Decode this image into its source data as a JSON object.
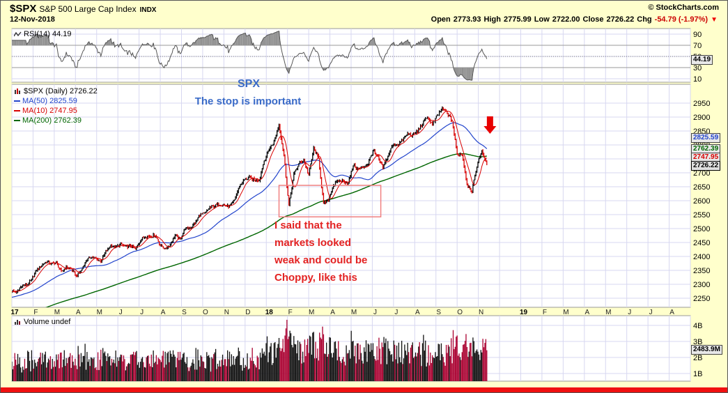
{
  "header": {
    "symbol": "$SPX",
    "index_name": "S&P 500 Large Cap Index",
    "exchange": "INDX",
    "credit": "© StockCharts.com",
    "date": "12-Nov-2018",
    "open_label": "Open",
    "open_value": "2773.93",
    "high_label": "High",
    "high_value": "2775.99",
    "low_label": "Low",
    "low_value": "2722.00",
    "close_label": "Close",
    "close_value": "2726.22",
    "chg_label": "Chg",
    "chg_value": "-54.79 (-1.97%)",
    "chg_arrow": "▼"
  },
  "rsi_panel": {
    "legend": "RSI(14) 44.19",
    "value_label": "44.19"
  },
  "main_panel": {
    "legend_main": "$SPX (Daily) 2726.22",
    "legend_ma50": "MA(50) 2825.59",
    "legend_ma10": "MA(10) 2747.95",
    "legend_ma200": "MA(200) 2762.39",
    "box_ma50": "2825.59",
    "box_ma200": "2762.39",
    "box_ma10": "2747.95",
    "box_close": "2726.22"
  },
  "volume_panel": {
    "legend": "Volume undef",
    "box_value": "2483.9M"
  },
  "x_axis": {
    "labels": [
      {
        "t": "17",
        "m": 0,
        "y": true
      },
      {
        "t": "F",
        "m": 1
      },
      {
        "t": "M",
        "m": 2
      },
      {
        "t": "A",
        "m": 3
      },
      {
        "t": "M",
        "m": 4
      },
      {
        "t": "J",
        "m": 5
      },
      {
        "t": "J",
        "m": 6
      },
      {
        "t": "A",
        "m": 7
      },
      {
        "t": "S",
        "m": 8
      },
      {
        "t": "O",
        "m": 9
      },
      {
        "t": "N",
        "m": 10
      },
      {
        "t": "D",
        "m": 11
      },
      {
        "t": "18",
        "m": 12,
        "y": true
      },
      {
        "t": "F",
        "m": 13
      },
      {
        "t": "M",
        "m": 14
      },
      {
        "t": "A",
        "m": 15
      },
      {
        "t": "M",
        "m": 16
      },
      {
        "t": "J",
        "m": 17
      },
      {
        "t": "J",
        "m": 18
      },
      {
        "t": "A",
        "m": 19
      },
      {
        "t": "S",
        "m": 20
      },
      {
        "t": "O",
        "m": 21
      },
      {
        "t": "N",
        "m": 22
      },
      {
        "t": "19",
        "m": 24,
        "y": true
      },
      {
        "t": "F",
        "m": 25
      },
      {
        "t": "M",
        "m": 26
      },
      {
        "t": "A",
        "m": 27
      },
      {
        "t": "M",
        "m": 28
      },
      {
        "t": "J",
        "m": 29
      },
      {
        "t": "J",
        "m": 30
      },
      {
        "t": "A",
        "m": 31
      }
    ]
  },
  "chart_data": {
    "type": "candlestick",
    "title": "$SPX (Daily) 2726.22",
    "date": "12-Nov-2018",
    "panels": [
      "RSI(14)",
      "price with MA(10)/MA(50)/MA(200)",
      "volume"
    ],
    "price_axis": {
      "min": 2250,
      "max": 2950,
      "tick_step": 50
    },
    "rsi_axis": {
      "ticks": [
        90,
        70,
        50,
        30,
        10
      ]
    },
    "volume_axis": {
      "ticks_billions": [
        4,
        3,
        2,
        1
      ]
    },
    "months_total": 32,
    "months_span": 22.4,
    "weekly_closes": [
      2277,
      2271,
      2295,
      2297,
      2316,
      2351,
      2367,
      2383,
      2373,
      2378,
      2344,
      2363,
      2356,
      2329,
      2349,
      2384,
      2399,
      2391,
      2382,
      2416,
      2439,
      2432,
      2446,
      2433,
      2438,
      2425,
      2459,
      2473,
      2472,
      2477,
      2441,
      2426,
      2443,
      2477,
      2461,
      2500,
      2502,
      2519,
      2549,
      2553,
      2575,
      2581,
      2588,
      2582,
      2579,
      2602,
      2652,
      2676,
      2683,
      2674,
      2674,
      2743,
      2786,
      2810,
      2873,
      2762,
      2581,
      2695,
      2732,
      2747,
      2691,
      2787,
      2752,
      2588,
      2604,
      2656,
      2670,
      2670,
      2663,
      2728,
      2713,
      2721,
      2735,
      2779,
      2755,
      2718,
      2760,
      2801,
      2802,
      2818,
      2840,
      2833,
      2850,
      2875,
      2901,
      2872,
      2905,
      2930,
      2914,
      2886,
      2767,
      2768,
      2659,
      2635,
      2723,
      2781,
      2726
    ],
    "ohlc_last": {
      "open": 2773.93,
      "high": 2775.99,
      "low": 2722.0,
      "close": 2726.22,
      "chg": -54.79,
      "chg_pct": -1.97
    },
    "indicators": {
      "rsi14": 44.19,
      "ma10": 2747.95,
      "ma50": 2825.59,
      "ma200": 2762.39,
      "last_close": 2726.22,
      "last_volume_b": 2.4839
    },
    "annotations": {
      "blue": [
        "SPX",
        "The stop is important"
      ],
      "red": [
        "I said that the",
        "markets looked",
        "weak and could be",
        "Choppy,  like this"
      ],
      "rect": {
        "month_from": 12.6,
        "month_to": 17.4,
        "price_from": 2542,
        "price_to": 2655
      },
      "arrow": {
        "month": 22.55,
        "price": 2840
      }
    },
    "colors": {
      "up": "#000000",
      "down": "#D80000",
      "ma10": "#D80000",
      "ma50": "#2244CC",
      "ma200": "#006600",
      "grid": "#D7D7F0",
      "background": "#FFFFCC",
      "annotation_blue": "#3A6BC8",
      "annotation_red": "#E32222"
    }
  }
}
